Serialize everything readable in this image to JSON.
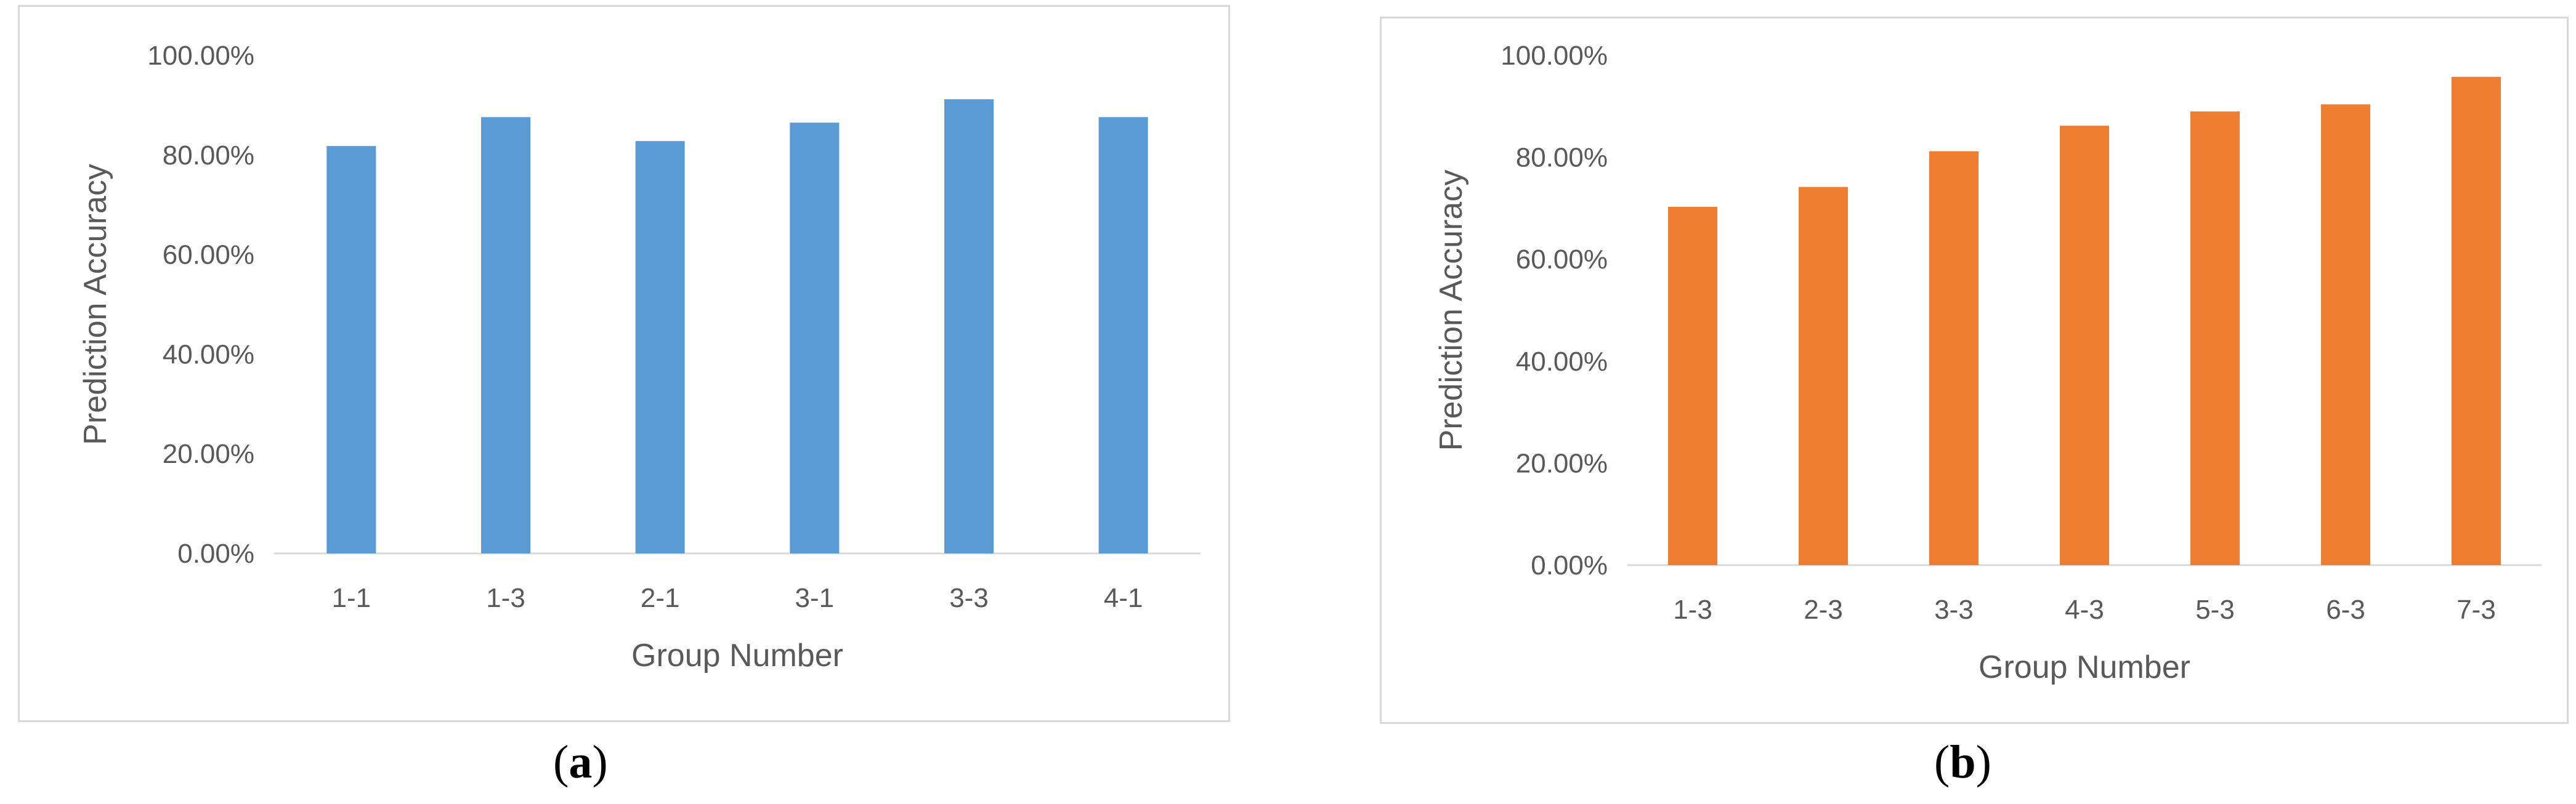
{
  "chart_data": [
    {
      "type": "bar",
      "title": "",
      "xlabel": "Group Number",
      "ylabel": "Prediction Accuracy",
      "categories": [
        "1-1",
        "1-3",
        "2-1",
        "3-1",
        "3-3",
        "4-1"
      ],
      "values": [
        0.818,
        0.876,
        0.828,
        0.865,
        0.912,
        0.876
      ],
      "ylim": [
        0,
        1
      ],
      "yticks": [
        "0.00%",
        "20.00%",
        "40.00%",
        "60.00%",
        "80.00%",
        "100.00%"
      ],
      "grid": false,
      "legend": "none",
      "color": "#5b9bd5"
    },
    {
      "type": "bar",
      "title": "",
      "xlabel": "Group Number",
      "ylabel": "Prediction Accuracy",
      "categories": [
        "1-3",
        "2-3",
        "3-3",
        "4-3",
        "5-3",
        "6-3",
        "7-3"
      ],
      "values": [
        0.703,
        0.742,
        0.812,
        0.862,
        0.89,
        0.904,
        0.958
      ],
      "ylim": [
        0,
        1
      ],
      "yticks": [
        "0.00%",
        "20.00%",
        "40.00%",
        "60.00%",
        "80.00%",
        "100.00%"
      ],
      "grid": false,
      "legend": "none",
      "color": "#ed7d31"
    }
  ],
  "captions": {
    "a_open": "(",
    "a_letter": "a",
    "a_close": ")",
    "b_open": "(",
    "b_letter": "b",
    "b_close": ")"
  }
}
